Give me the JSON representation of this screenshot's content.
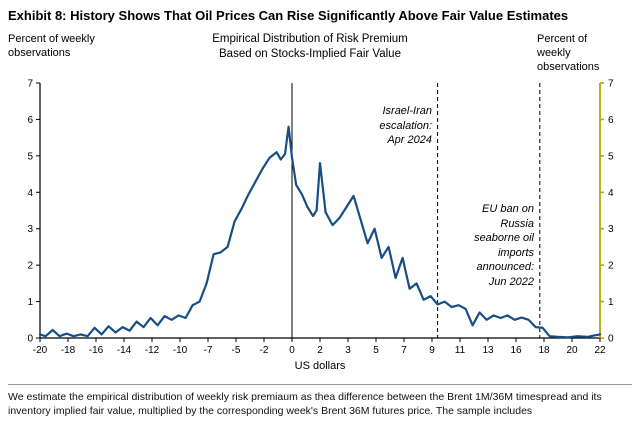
{
  "header": {
    "title": "Exhibit 8: History Shows That Oil Prices Can Rise Significantly Above Fair Value Estimates"
  },
  "chart": {
    "left_axis_label": "Percent of weekly\nobservations",
    "title": "Empirical Distribution of Risk Premium\nBased on Stocks-Implied Fair Value",
    "right_axis_label": "Percent of\nweekly\nobservations",
    "xlabel": "US dollars"
  },
  "chart_data": {
    "type": "line",
    "title": "Empirical Distribution of Risk Premium Based on Stocks-Implied Fair Value",
    "ylabel_left": "Percent of weekly observations",
    "ylabel_right": "Percent of weekly observations",
    "xlabel": "US dollars",
    "ylim": [
      0,
      7
    ],
    "y_ticks": [
      0,
      1,
      2,
      3,
      4,
      5,
      6,
      7
    ],
    "x_tick_labels": [
      "-20",
      "-18",
      "-16",
      "-14",
      "-12",
      "-10",
      "-7",
      "-5",
      "-2",
      "0",
      "2",
      "3",
      "5",
      "7",
      "9",
      "11",
      "13",
      "16",
      "18",
      "20",
      "22"
    ],
    "x_unit_note": "points use tick-index units; ticks evenly spaced",
    "zero_line_tick_index": 9,
    "grid": false,
    "legend": "none",
    "axis_colors": {
      "left": "#000000",
      "bottom": "#000000",
      "right": "#a8ad00"
    },
    "series": [
      {
        "name": "Empirical distribution of weekly risk premium",
        "color": "#174e86",
        "points": [
          [
            0,
            0.1
          ],
          [
            0.2,
            0.05
          ],
          [
            0.45,
            0.22
          ],
          [
            0.7,
            0.05
          ],
          [
            0.95,
            0.12
          ],
          [
            1.2,
            0.05
          ],
          [
            1.45,
            0.1
          ],
          [
            1.7,
            0.05
          ],
          [
            1.95,
            0.28
          ],
          [
            2.2,
            0.1
          ],
          [
            2.45,
            0.32
          ],
          [
            2.7,
            0.15
          ],
          [
            2.95,
            0.3
          ],
          [
            3.2,
            0.2
          ],
          [
            3.45,
            0.45
          ],
          [
            3.7,
            0.3
          ],
          [
            3.95,
            0.55
          ],
          [
            4.2,
            0.35
          ],
          [
            4.45,
            0.6
          ],
          [
            4.7,
            0.5
          ],
          [
            4.95,
            0.62
          ],
          [
            5.2,
            0.55
          ],
          [
            5.45,
            0.9
          ],
          [
            5.7,
            1.0
          ],
          [
            5.95,
            1.5
          ],
          [
            6.2,
            2.3
          ],
          [
            6.45,
            2.35
          ],
          [
            6.7,
            2.5
          ],
          [
            6.95,
            3.2
          ],
          [
            7.2,
            3.55
          ],
          [
            7.45,
            3.95
          ],
          [
            7.7,
            4.3
          ],
          [
            7.95,
            4.65
          ],
          [
            8.2,
            4.95
          ],
          [
            8.45,
            5.1
          ],
          [
            8.6,
            4.9
          ],
          [
            8.75,
            5.05
          ],
          [
            8.88,
            5.8
          ],
          [
            9.0,
            4.95
          ],
          [
            9.15,
            4.2
          ],
          [
            9.35,
            3.95
          ],
          [
            9.55,
            3.6
          ],
          [
            9.75,
            3.35
          ],
          [
            9.88,
            3.5
          ],
          [
            10.0,
            4.8
          ],
          [
            10.2,
            3.45
          ],
          [
            10.45,
            3.1
          ],
          [
            10.7,
            3.3
          ],
          [
            10.95,
            3.6
          ],
          [
            11.2,
            3.9
          ],
          [
            11.45,
            3.25
          ],
          [
            11.7,
            2.6
          ],
          [
            11.95,
            3.0
          ],
          [
            12.2,
            2.2
          ],
          [
            12.45,
            2.5
          ],
          [
            12.7,
            1.65
          ],
          [
            12.95,
            2.2
          ],
          [
            13.2,
            1.35
          ],
          [
            13.45,
            1.5
          ],
          [
            13.7,
            1.05
          ],
          [
            13.95,
            1.15
          ],
          [
            14.2,
            0.92
          ],
          [
            14.45,
            1.0
          ],
          [
            14.7,
            0.85
          ],
          [
            14.95,
            0.9
          ],
          [
            15.2,
            0.8
          ],
          [
            15.45,
            0.35
          ],
          [
            15.7,
            0.7
          ],
          [
            15.95,
            0.5
          ],
          [
            16.2,
            0.62
          ],
          [
            16.45,
            0.55
          ],
          [
            16.7,
            0.62
          ],
          [
            16.95,
            0.5
          ],
          [
            17.2,
            0.56
          ],
          [
            17.45,
            0.5
          ],
          [
            17.7,
            0.3
          ],
          [
            17.95,
            0.28
          ],
          [
            18.2,
            0.05
          ],
          [
            18.5,
            0.03
          ],
          [
            18.85,
            0.02
          ],
          [
            19.2,
            0.05
          ],
          [
            19.55,
            0.03
          ],
          [
            19.8,
            0.07
          ],
          [
            20,
            0.1
          ]
        ]
      }
    ],
    "annotations": [
      {
        "text": "Israel-Iran\nescalation:\nApr 2024",
        "tick_x": 14.2,
        "line_style": "dashed"
      },
      {
        "text": "EU ban on\nRussia\nseaborne oil\nimports\nannounced:\nJun 2022",
        "tick_x": 17.85,
        "line_style": "dashed"
      }
    ]
  },
  "footer": {
    "note": "We estimate the empirical distribution of weekly risk premiaum as thea difference between the Brent 1M/36M timespread and its inventory implied fair value, multiplied by the corresponding week's Brent 36M futures price. The sample includes"
  }
}
